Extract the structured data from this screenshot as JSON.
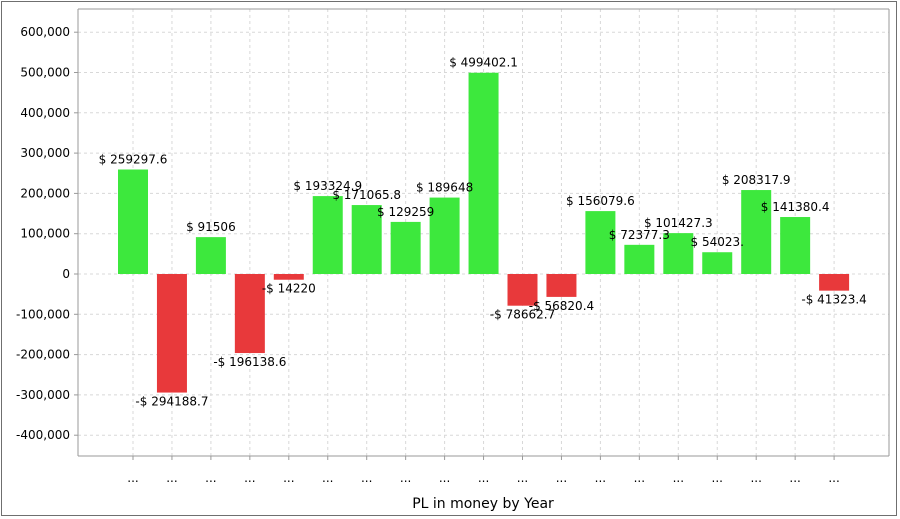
{
  "chart_data": {
    "type": "bar",
    "title": "",
    "xlabel": "PL in money by Year",
    "ylabel": "",
    "ylim": [
      -450000,
      600000
    ],
    "yticks": [
      600000,
      500000,
      400000,
      300000,
      200000,
      100000,
      0,
      -100000,
      -200000,
      -300000,
      -400000
    ],
    "ytick_labels": [
      "600,000",
      "500,000",
      "400,000",
      "300,000",
      "200,000",
      "100,000",
      "0",
      "-100,000",
      "-200,000",
      "-300,000",
      "-400,000"
    ],
    "grid": true,
    "categories": [
      "...",
      "...",
      "...",
      "...",
      "...",
      "...",
      "...",
      "...",
      "...",
      "...",
      "...",
      "...",
      "...",
      "...",
      "...",
      "...",
      "...",
      "...",
      "..."
    ],
    "values": [
      259297.6,
      -294188.7,
      91506,
      -196138.6,
      -14220,
      193324.9,
      171065.8,
      129259,
      189648,
      499402.1,
      -78662.7,
      -56820.4,
      156079.6,
      72377.3,
      101427.3,
      54023,
      208317.9,
      141380.4,
      -41323.4
    ],
    "data_labels": [
      "$ 259297.6",
      "-$ 294188.7",
      "$ 91506",
      "-$ 196138.6",
      "-$ 14220",
      "$ 193324.9",
      "$ 171065.8",
      "$ 129259",
      "$ 189648",
      "$ 499402.1",
      "-$ 78662.7",
      "-$ 56820.4",
      "$ 156079.6",
      "$ 72377.3",
      "$ 101427.3",
      "$ 54023.",
      "$ 208317.9",
      "$ 141380.4",
      "-$ 41323.4"
    ],
    "colors": {
      "positive": "#3de83d",
      "negative": "#e8393b",
      "grid": "#d8d8d8",
      "axis": "#9a9a9a"
    }
  }
}
